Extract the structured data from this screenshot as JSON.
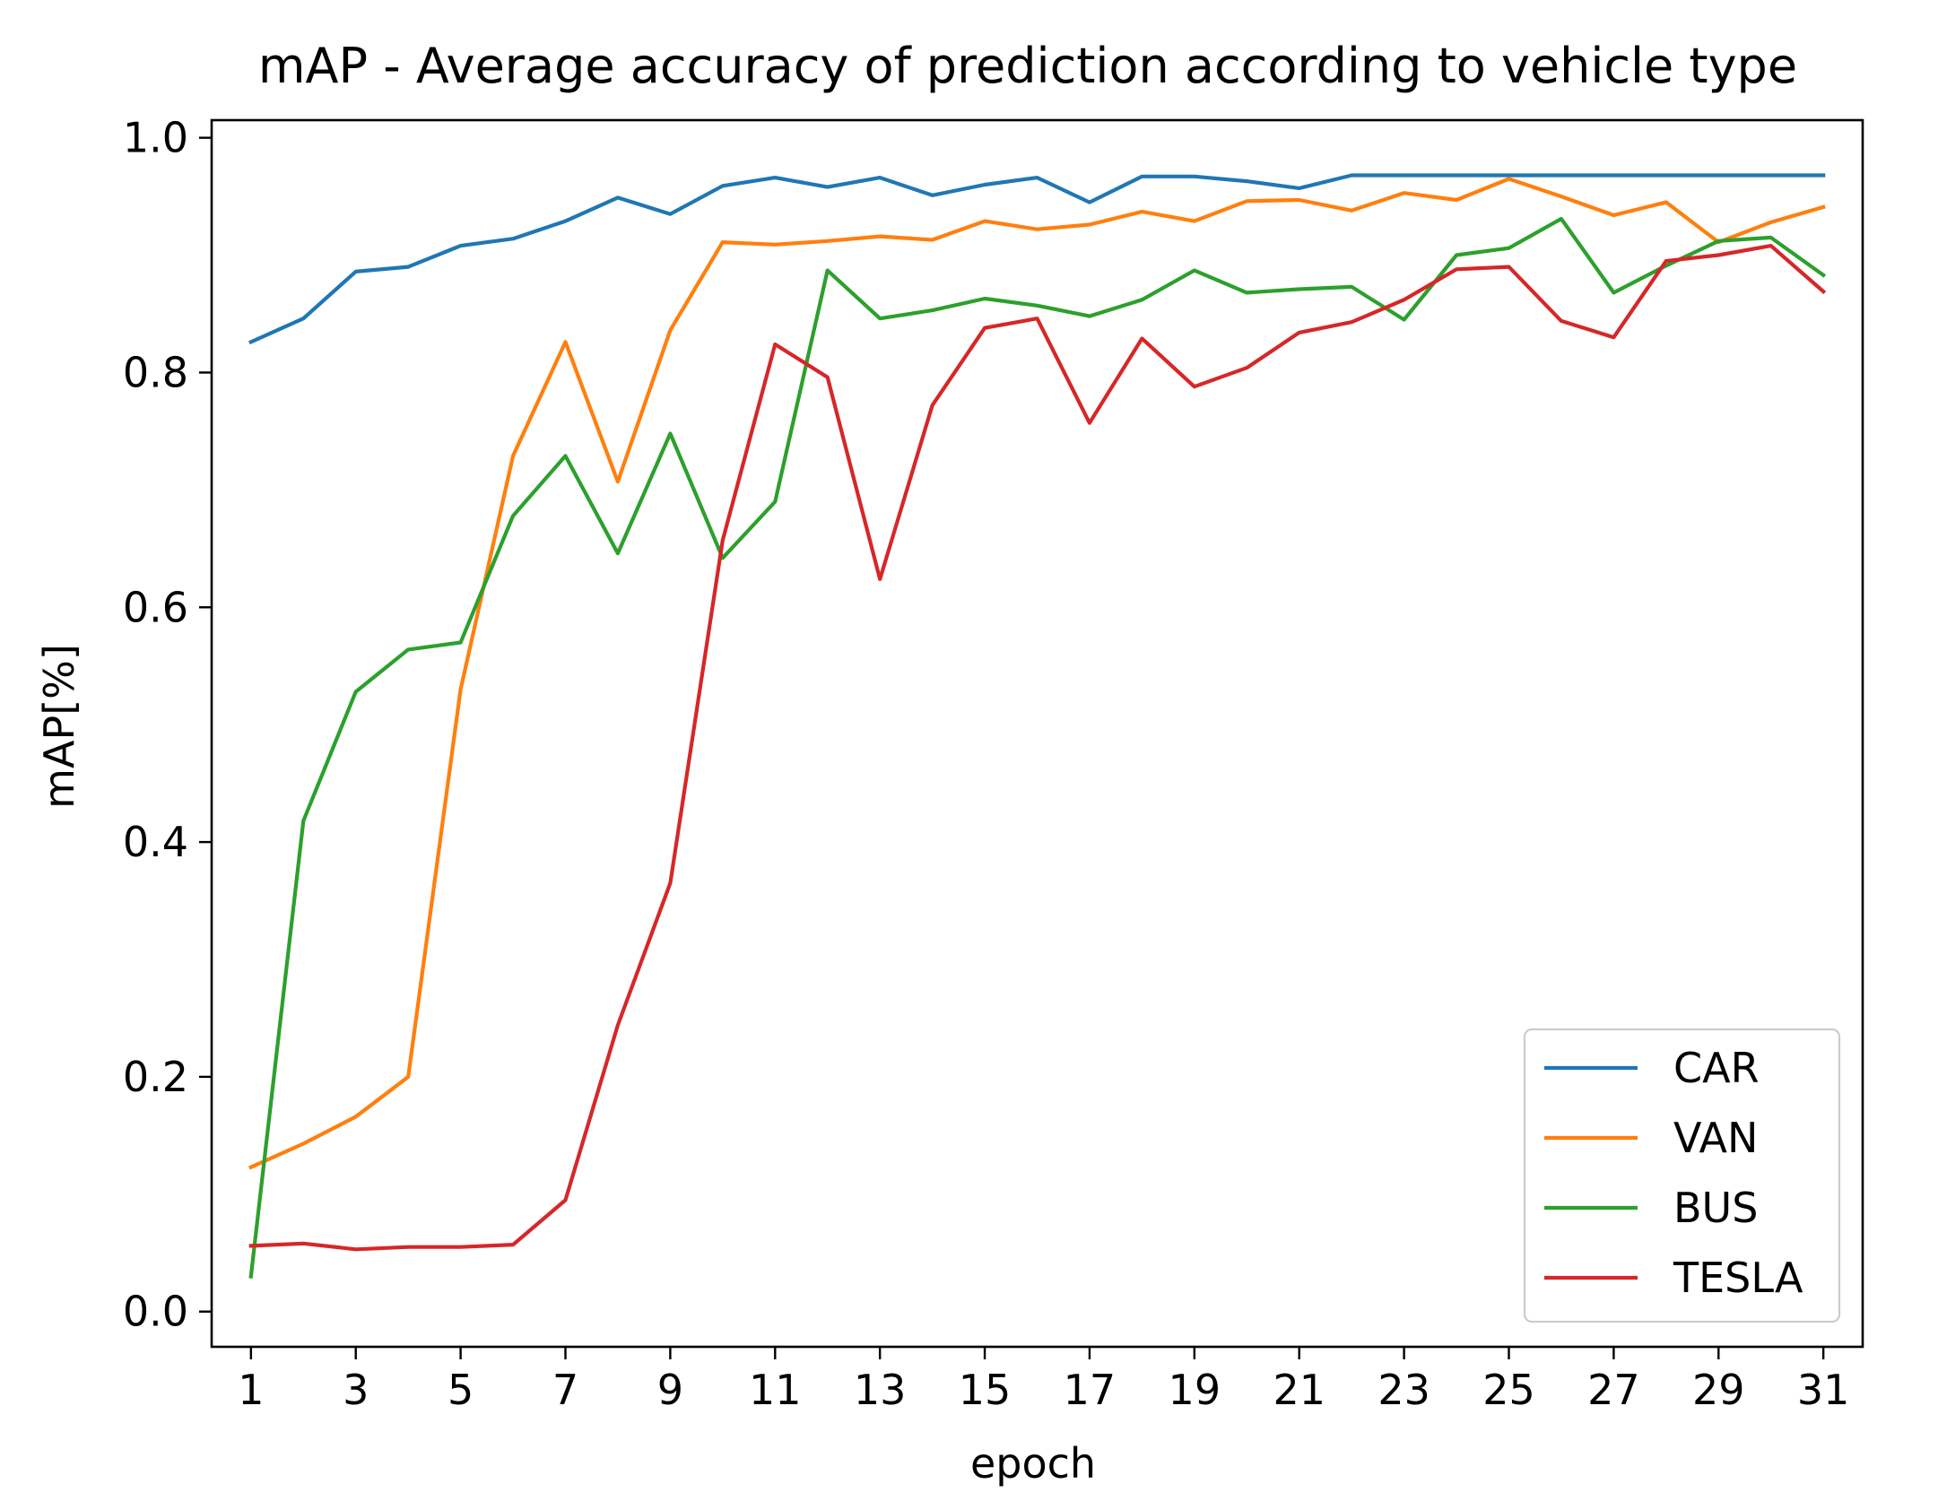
{
  "chart_data": {
    "type": "line",
    "title": "mAP - Average accuracy of prediction according to vehicle type",
    "xlabel": "epoch",
    "ylabel": "mAP[%]",
    "xlim": [
      0.25,
      31.75
    ],
    "ylim": [
      -0.03,
      1.015
    ],
    "xticks": [
      1,
      3,
      5,
      7,
      9,
      11,
      13,
      15,
      17,
      19,
      21,
      23,
      25,
      27,
      29,
      31
    ],
    "xtick_labels": [
      "1",
      "3",
      "5",
      "7",
      "9",
      "11",
      "13",
      "15",
      "17",
      "19",
      "21",
      "23",
      "25",
      "27",
      "29",
      "31"
    ],
    "yticks": [
      0.0,
      0.2,
      0.4,
      0.6,
      0.8,
      1.0
    ],
    "ytick_labels": [
      "0.0",
      "0.2",
      "0.4",
      "0.6",
      "0.8",
      "1.0"
    ],
    "grid": false,
    "legend_position": "lower-right",
    "x": [
      1,
      2,
      3,
      4,
      5,
      6,
      7,
      8,
      9,
      10,
      11,
      12,
      13,
      14,
      15,
      16,
      17,
      18,
      19,
      20,
      21,
      22,
      23,
      24,
      25,
      26,
      27,
      28,
      29,
      30,
      31
    ],
    "series": [
      {
        "name": "CAR",
        "color": "#1f77b4",
        "values": [
          0.826,
          0.846,
          0.886,
          0.89,
          0.908,
          0.914,
          0.929,
          0.949,
          0.935,
          0.959,
          0.966,
          0.958,
          0.966,
          0.951,
          0.96,
          0.966,
          0.945,
          0.967,
          0.967,
          0.963,
          0.957,
          0.968,
          0.968,
          0.968,
          0.968,
          0.968,
          0.968,
          0.968,
          0.968,
          0.968,
          0.968
        ]
      },
      {
        "name": "VAN",
        "color": "#ff7f0e",
        "values": [
          0.123,
          0.143,
          0.166,
          0.2,
          0.53,
          0.729,
          0.826,
          0.707,
          0.836,
          0.911,
          0.909,
          0.912,
          0.916,
          0.913,
          0.929,
          0.922,
          0.926,
          0.937,
          0.929,
          0.946,
          0.947,
          0.938,
          0.953,
          0.947,
          0.965,
          0.95,
          0.934,
          0.945,
          0.911,
          0.928,
          0.941
        ]
      },
      {
        "name": "BUS",
        "color": "#2ca02c",
        "values": [
          0.03,
          0.418,
          0.528,
          0.564,
          0.57,
          0.678,
          0.729,
          0.646,
          0.748,
          0.642,
          0.69,
          0.887,
          0.846,
          0.853,
          0.863,
          0.857,
          0.848,
          0.862,
          0.887,
          0.868,
          0.871,
          0.873,
          0.845,
          0.9,
          0.906,
          0.931,
          0.868,
          0.891,
          0.912,
          0.915,
          0.883
        ]
      },
      {
        "name": "TESLA",
        "color": "#d62728",
        "values": [
          0.056,
          0.058,
          0.053,
          0.055,
          0.055,
          0.057,
          0.095,
          0.244,
          0.365,
          0.657,
          0.824,
          0.796,
          0.624,
          0.772,
          0.838,
          0.846,
          0.757,
          0.829,
          0.788,
          0.804,
          0.834,
          0.843,
          0.862,
          0.888,
          0.89,
          0.844,
          0.83,
          0.895,
          0.9,
          0.908,
          0.869
        ]
      }
    ]
  }
}
